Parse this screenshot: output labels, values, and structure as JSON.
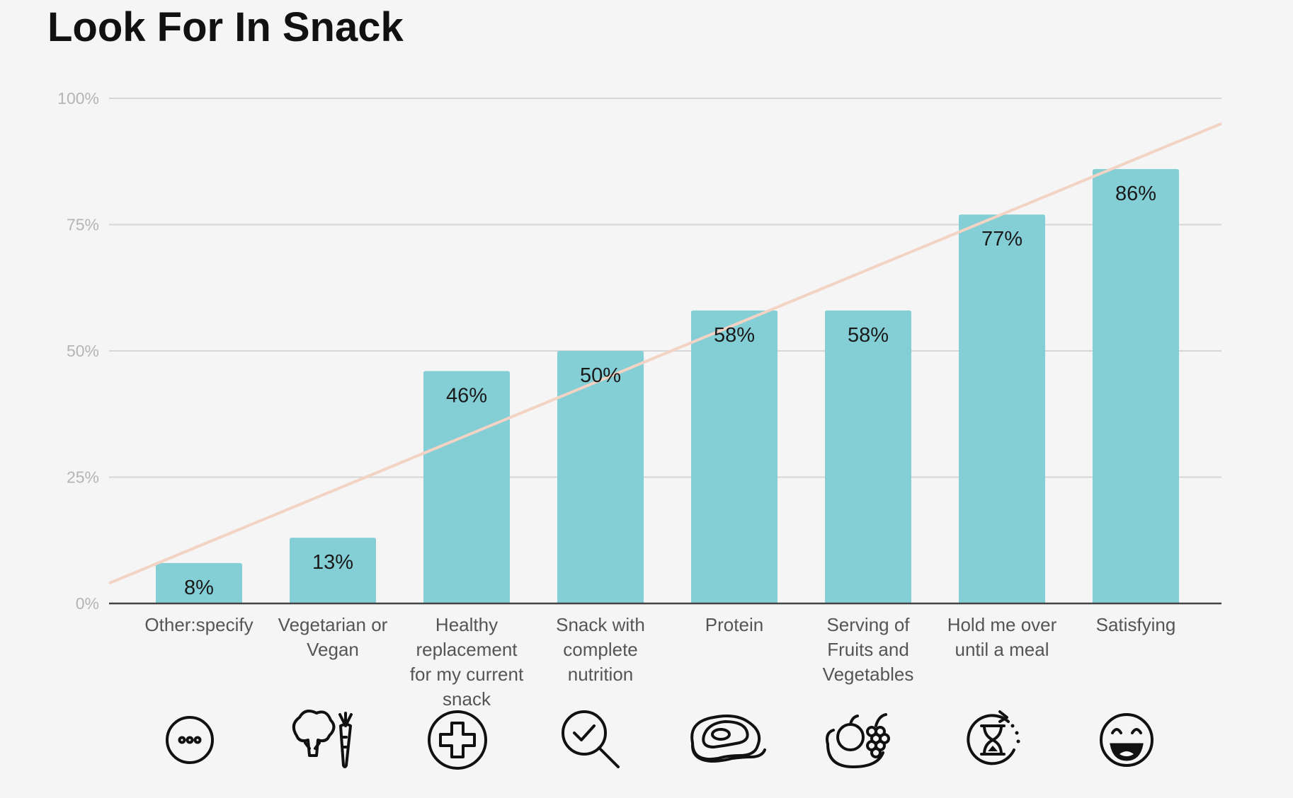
{
  "title": "Look For In Snack",
  "chart_data": {
    "type": "bar",
    "title": "Look For In Snack",
    "xlabel": "",
    "ylabel": "",
    "ylim": [
      0,
      100
    ],
    "yticks": [
      "0%",
      "25%",
      "50%",
      "75%",
      "100%"
    ],
    "grid": true,
    "legend": "none",
    "categories": [
      "Other:specify",
      "Vegetarian or Vegan",
      "Healthy replacement for my current snack",
      "Snack with complete nutrition",
      "Protein",
      "Serving of Fruits and Vegetables",
      "Hold me over until a meal",
      "Satisfying"
    ],
    "category_lines": [
      [
        "Other:specify"
      ],
      [
        "Vegetarian or",
        "Vegan"
      ],
      [
        "Healthy",
        "replacement",
        "for my current",
        "snack"
      ],
      [
        "Snack with",
        "complete",
        "nutrition"
      ],
      [
        "Protein"
      ],
      [
        "Serving of",
        "Fruits and",
        "Vegetables"
      ],
      [
        "Hold me over",
        "until a meal"
      ],
      [
        "Satisfying"
      ]
    ],
    "values": [
      8,
      13,
      46,
      50,
      58,
      58,
      77,
      86
    ],
    "value_labels": [
      "8%",
      "13%",
      "46%",
      "50%",
      "58%",
      "58%",
      "77%",
      "86%"
    ],
    "trendline": {
      "type": "linear",
      "start": 4,
      "end": 95
    },
    "icons": [
      "ellipsis-icon",
      "broccoli-carrot-icon",
      "plus-circle-icon",
      "magnifier-check-icon",
      "steak-icon",
      "fruit-basket-icon",
      "hourglass-timer-icon",
      "grinning-face-icon"
    ],
    "colors": {
      "bar": "#84ced6",
      "trend": "#f2d3c4",
      "grid": "#d6d6d6",
      "axis": "#444444"
    }
  }
}
